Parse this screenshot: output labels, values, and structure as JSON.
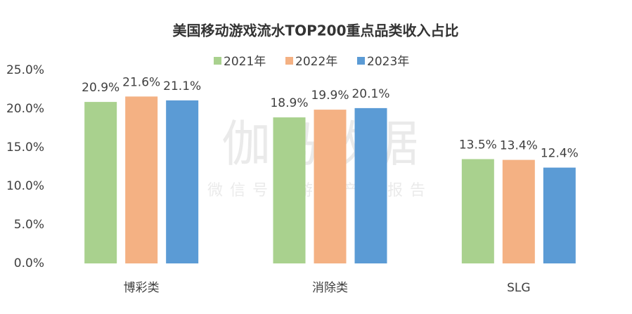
{
  "chart_data": {
    "type": "bar",
    "title": "美国移动游戏流水TOP200重点品类收入占比",
    "watermark": "伽马数据",
    "watermark_subtitle": "微信号：游戏产业报告",
    "categories": [
      "博彩类",
      "消除类",
      "SLG"
    ],
    "series": [
      {
        "name": "2021年",
        "color": "#a9d18e",
        "values": [
          20.9,
          18.9,
          13.5
        ],
        "value_labels": [
          "20.9%",
          "18.9%",
          "13.5%"
        ]
      },
      {
        "name": "2022年",
        "color": "#f4b183",
        "values": [
          21.6,
          19.9,
          13.4
        ],
        "value_labels": [
          "21.6%",
          "19.9%",
          "13.4%"
        ]
      },
      {
        "name": "2023年",
        "color": "#5b9bd5",
        "values": [
          21.1,
          20.1,
          12.4
        ],
        "value_labels": [
          "21.1%",
          "20.1%",
          "12.4%"
        ]
      }
    ],
    "ylim": [
      0,
      25
    ],
    "yticks": [
      {
        "value": 0,
        "label": "0.0%"
      },
      {
        "value": 5,
        "label": "5.0%"
      },
      {
        "value": 10,
        "label": "10.0%"
      },
      {
        "value": 15,
        "label": "15.0%"
      },
      {
        "value": 20,
        "label": "20.0%"
      },
      {
        "value": 25,
        "label": "25.0%"
      }
    ],
    "legend": "top"
  }
}
